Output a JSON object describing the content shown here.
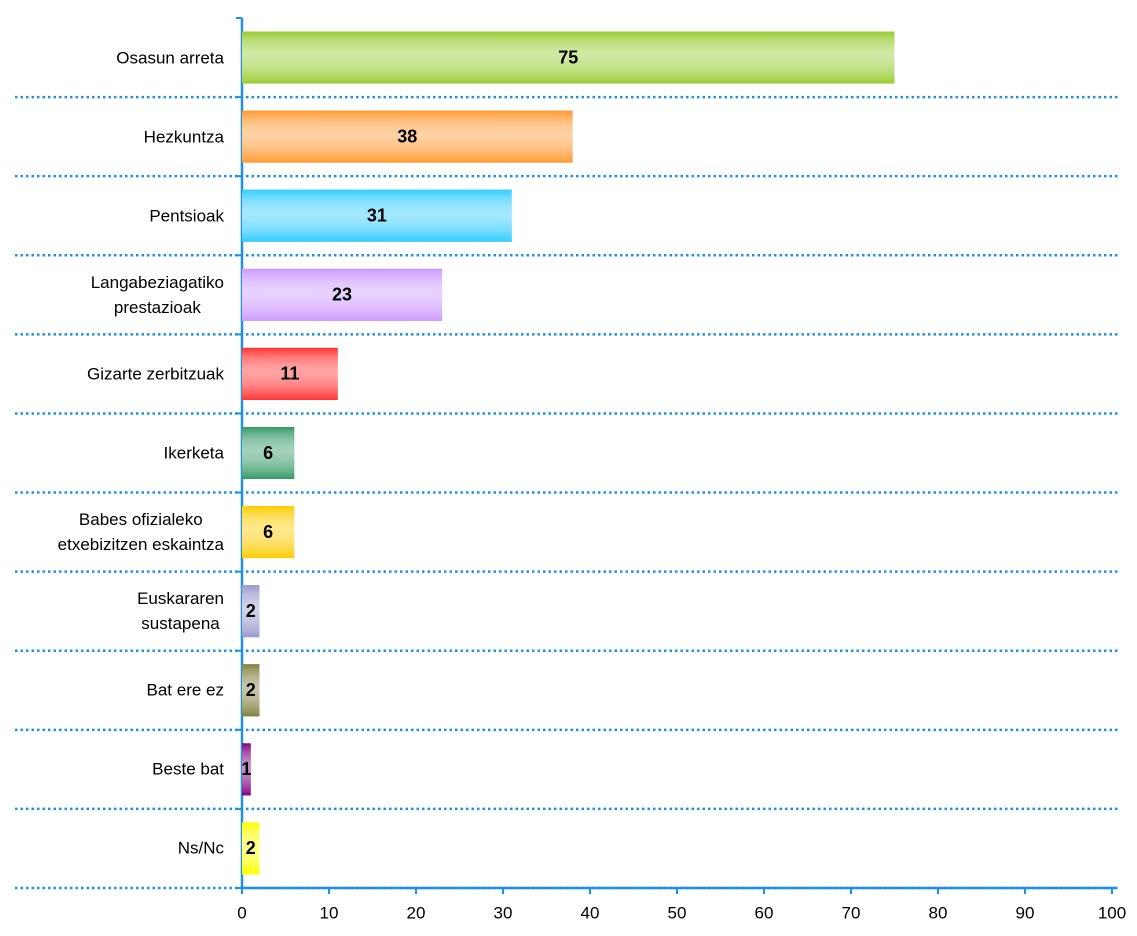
{
  "chart_data": {
    "type": "barh",
    "categories": [
      "Osasun arreta",
      "Hezkuntza",
      "Pentsioak",
      "Langabeziagatiko\nprestazioak",
      "Gizarte zerbitzuak",
      "Ikerketa",
      "Babes ofizialeko\netxebizitzen eskaintza",
      "Euskararen\nsustapena",
      "Bat ere ez",
      "Beste bat",
      "Ns/Nc"
    ],
    "values": [
      75,
      38,
      31,
      23,
      11,
      6,
      6,
      2,
      2,
      1,
      2
    ],
    "colors": [
      "#99cc33",
      "#ff9933",
      "#33ccff",
      "#cc99ff",
      "#ff3333",
      "#339966",
      "#ffcc00",
      "#9999cc",
      "#808040",
      "#800080",
      "#ffff00"
    ],
    "xlim": [
      0,
      100
    ],
    "xticks": [
      0,
      10,
      20,
      30,
      40,
      50,
      60,
      70,
      80,
      90,
      100
    ]
  }
}
